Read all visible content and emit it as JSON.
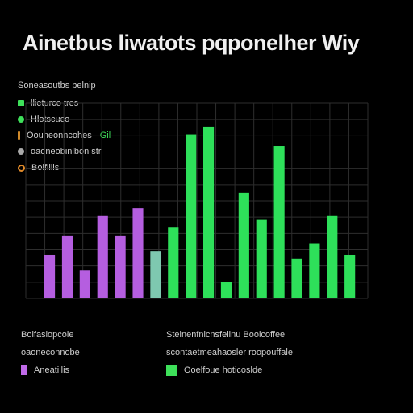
{
  "title": "Ainetbus liwatots pqponelher Wiy",
  "legend": {
    "heading": "Soneasoutbs belnip",
    "items": [
      {
        "label": "llieturco  tres",
        "extra": "",
        "color": "#3ee05a",
        "shape": "square"
      },
      {
        "label": "Hlotscuco",
        "extra": "",
        "color": "#3ee05a",
        "shape": "dot"
      },
      {
        "label": "Oouneonncohes",
        "extra": "Gil",
        "color": "#d08a2a",
        "shape": "bar"
      },
      {
        "label": "oaoneobinlbon str",
        "extra": "",
        "color": "#aaaaaa",
        "shape": "dot"
      },
      {
        "label": "Bolfillis",
        "extra": "",
        "color": "#e08a2a",
        "shape": "ring"
      }
    ]
  },
  "footer": {
    "left": {
      "line1": "Bolfaslopcole",
      "line2": "oaoneconnobe",
      "swatch_label": "Aneatillis",
      "swatch_color": "#c06ae8"
    },
    "right": {
      "line1": "Stelnenfnicnsfelinu Boolcoffee",
      "line2": "scontaetmeahaosler  roopouffale",
      "swatch_label": "Ooelfoue hoticoslde",
      "swatch_color": "#3ee05a"
    }
  },
  "chart_data": {
    "type": "bar",
    "title": "Ainetbus liwatots pqponelher Wiy",
    "xlabel": "",
    "ylabel": "",
    "ylim": [
      0,
      100
    ],
    "grid": true,
    "legend_position": "top-left",
    "colors": {
      "purple": "#b55ee0",
      "teal": "#7ec8b0",
      "green": "#2ee05a"
    },
    "values": [
      22,
      32,
      14,
      42,
      32,
      46,
      24,
      36,
      84,
      88,
      8,
      54,
      40,
      78,
      20,
      28,
      42,
      22
    ],
    "bar_colors": [
      "purple",
      "purple",
      "purple",
      "purple",
      "purple",
      "purple",
      "teal",
      "green",
      "green",
      "green",
      "green",
      "green",
      "green",
      "green",
      "green",
      "green",
      "green",
      "green"
    ]
  }
}
